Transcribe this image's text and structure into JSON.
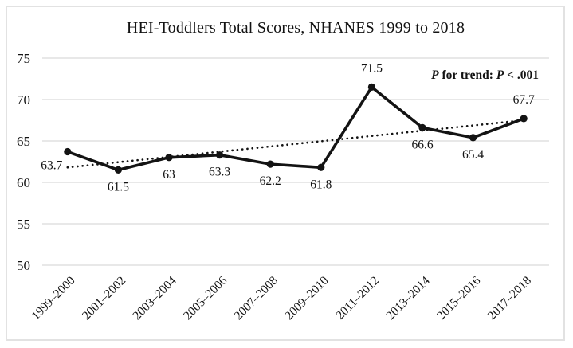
{
  "figure": {
    "title": "HEI-Toddlers Total Scores, NHANES 1999 to 2018",
    "annotation": {
      "p1": "P",
      "mid": " for trend: ",
      "p2": "P",
      "tail": " < .001"
    }
  },
  "chart_data": {
    "type": "line",
    "title": "HEI-Toddlers Total Scores, NHANES 1999 to 2018",
    "categories": [
      "1999–2000",
      "2001–2002",
      "2003–2004",
      "2005–2006",
      "2007–2008",
      "2009–2010",
      "2011–2012",
      "2013–2014",
      "2015–2016",
      "2017–2018"
    ],
    "series": [
      {
        "name": "HEI-Toddlers total score",
        "style": "solid-line-with-round-markers",
        "color": "#131313",
        "values": [
          63.7,
          61.5,
          63,
          63.3,
          62.2,
          61.8,
          71.5,
          66.6,
          65.4,
          67.7
        ]
      },
      {
        "name": "linear trend",
        "style": "dotted-trendline",
        "color": "#131313",
        "endpoints": [
          61.8,
          67.5
        ]
      }
    ],
    "data_labels": {
      "values": [
        "63.7",
        "61.5",
        "63",
        "63.3",
        "62.2",
        "61.8",
        "71.5",
        "66.6",
        "65.4",
        "67.7"
      ],
      "positions": [
        "below-left",
        "below",
        "below",
        "below",
        "below",
        "below",
        "above",
        "below",
        "below",
        "above"
      ]
    },
    "y_axis": {
      "ticks": [
        75,
        70,
        65,
        60,
        55,
        50
      ],
      "range": [
        50,
        75
      ]
    },
    "x_axis": {
      "label_rotation_deg": -45
    },
    "grid": {
      "horizontal": true,
      "color": "#d9d9d9"
    },
    "annotation": "P for trend: P < .001",
    "legend": "none"
  }
}
